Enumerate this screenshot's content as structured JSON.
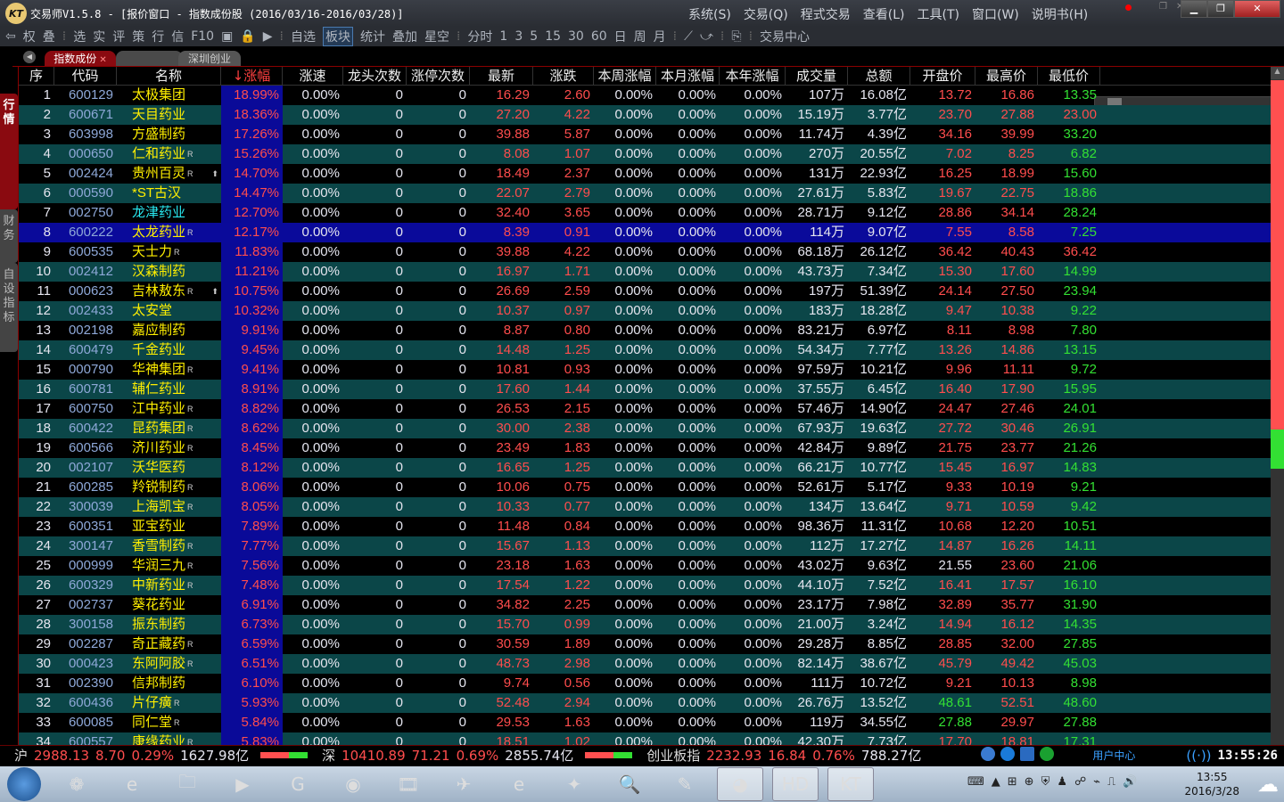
{
  "window": {
    "title": "交易师V1.5.8 - [报价窗口 - 指数成份股 (2016/03/16-2016/03/28)]",
    "logo": "KT"
  },
  "menu": [
    "系统(S)",
    "交易(Q)",
    "程式交易",
    "查看(L)",
    "工具(T)",
    "窗口(W)",
    "说明书(H)"
  ],
  "toolbar": [
    "权",
    "叠",
    "选",
    "实",
    "评",
    "策",
    "行",
    "信",
    "F10",
    "自选",
    "板块",
    "统计",
    "叠加",
    "星空",
    "分时",
    "1",
    "3",
    "5",
    "15",
    "30",
    "60",
    "日",
    "周",
    "月",
    "交易中心"
  ],
  "toolbar_active": "板块",
  "tabs": {
    "active": "指数成份",
    "second": "",
    "third": "深圳创业"
  },
  "side_tabs": [
    "行情",
    "财务",
    "自设指标"
  ],
  "columns": [
    "序",
    "代码",
    "名称",
    "↓涨幅",
    "涨速",
    "龙头次数",
    "涨停次数",
    "最新",
    "涨跌",
    "本周涨幅",
    "本月涨幅",
    "本年涨幅",
    "成交量",
    "总额",
    "开盘价",
    "最高价",
    "最低价"
  ],
  "sort_column": "↓涨幅",
  "selected_row": 8,
  "rows": [
    [
      1,
      "600129",
      "太极集团",
      "",
      0,
      "18.99%",
      "16.29",
      "2.60",
      "107万",
      "16.08亿",
      "13.72",
      "16.86",
      "13.35"
    ],
    [
      2,
      "600671",
      "天目药业",
      "",
      0,
      "18.36%",
      "27.20",
      "4.22",
      "15.19万",
      "3.77亿",
      "23.70",
      "27.88",
      "23.00"
    ],
    [
      3,
      "603998",
      "方盛制药",
      "",
      0,
      "17.26%",
      "39.88",
      "5.87",
      "11.74万",
      "4.39亿",
      "34.16",
      "39.99",
      "33.20"
    ],
    [
      4,
      "000650",
      "仁和药业",
      "R",
      0,
      "15.26%",
      "8.08",
      "1.07",
      "270万",
      "20.55亿",
      "7.02",
      "8.25",
      "6.82"
    ],
    [
      5,
      "002424",
      "贵州百灵",
      "R",
      1,
      "14.70%",
      "18.49",
      "2.37",
      "131万",
      "22.93亿",
      "16.25",
      "18.99",
      "15.60"
    ],
    [
      6,
      "000590",
      "*ST古汉",
      "",
      0,
      "14.47%",
      "22.07",
      "2.79",
      "27.61万",
      "5.83亿",
      "19.67",
      "22.75",
      "18.86"
    ],
    [
      7,
      "002750",
      "龙津药业",
      "",
      0,
      "12.70%",
      "32.40",
      "3.65",
      "28.71万",
      "9.12亿",
      "28.86",
      "34.14",
      "28.24"
    ],
    [
      8,
      "600222",
      "太龙药业",
      "R",
      0,
      "12.17%",
      "8.39",
      "0.91",
      "114万",
      "9.07亿",
      "7.55",
      "8.58",
      "7.25"
    ],
    [
      9,
      "600535",
      "天士力",
      "R",
      0,
      "11.83%",
      "39.88",
      "4.22",
      "68.18万",
      "26.12亿",
      "36.42",
      "40.43",
      "36.42"
    ],
    [
      10,
      "002412",
      "汉森制药",
      "",
      0,
      "11.21%",
      "16.97",
      "1.71",
      "43.73万",
      "7.34亿",
      "15.30",
      "17.60",
      "14.99"
    ],
    [
      11,
      "000623",
      "吉林敖东",
      "R",
      1,
      "10.75%",
      "26.69",
      "2.59",
      "197万",
      "51.39亿",
      "24.14",
      "27.50",
      "23.94"
    ],
    [
      12,
      "002433",
      "太安堂",
      "",
      0,
      "10.32%",
      "10.37",
      "0.97",
      "183万",
      "18.28亿",
      "9.47",
      "10.38",
      "9.22"
    ],
    [
      13,
      "002198",
      "嘉应制药",
      "",
      0,
      "9.91%",
      "8.87",
      "0.80",
      "83.21万",
      "6.97亿",
      "8.11",
      "8.98",
      "7.80"
    ],
    [
      14,
      "600479",
      "千金药业",
      "",
      0,
      "9.45%",
      "14.48",
      "1.25",
      "54.34万",
      "7.77亿",
      "13.26",
      "14.86",
      "13.15"
    ],
    [
      15,
      "000790",
      "华神集团",
      "R",
      0,
      "9.41%",
      "10.81",
      "0.93",
      "97.59万",
      "10.21亿",
      "9.96",
      "11.11",
      "9.72"
    ],
    [
      16,
      "600781",
      "辅仁药业",
      "",
      0,
      "8.91%",
      "17.60",
      "1.44",
      "37.55万",
      "6.45亿",
      "16.40",
      "17.90",
      "15.95"
    ],
    [
      17,
      "600750",
      "江中药业",
      "R",
      0,
      "8.82%",
      "26.53",
      "2.15",
      "57.46万",
      "14.90亿",
      "24.47",
      "27.46",
      "24.01"
    ],
    [
      18,
      "600422",
      "昆药集团",
      "R",
      0,
      "8.62%",
      "30.00",
      "2.38",
      "67.93万",
      "19.63亿",
      "27.72",
      "30.46",
      "26.91"
    ],
    [
      19,
      "600566",
      "济川药业",
      "R",
      0,
      "8.45%",
      "23.49",
      "1.83",
      "42.84万",
      "9.89亿",
      "21.75",
      "23.77",
      "21.26"
    ],
    [
      20,
      "002107",
      "沃华医药",
      "",
      0,
      "8.12%",
      "16.65",
      "1.25",
      "66.21万",
      "10.77亿",
      "15.45",
      "16.97",
      "14.83"
    ],
    [
      21,
      "600285",
      "羚锐制药",
      "R",
      0,
      "8.06%",
      "10.06",
      "0.75",
      "52.61万",
      "5.17亿",
      "9.33",
      "10.19",
      "9.21"
    ],
    [
      22,
      "300039",
      "上海凯宝",
      "R",
      0,
      "8.05%",
      "10.33",
      "0.77",
      "134万",
      "13.64亿",
      "9.71",
      "10.59",
      "9.42"
    ],
    [
      23,
      "600351",
      "亚宝药业",
      "",
      0,
      "7.89%",
      "11.48",
      "0.84",
      "98.36万",
      "11.31亿",
      "10.68",
      "12.20",
      "10.51"
    ],
    [
      24,
      "300147",
      "香雪制药",
      "R",
      0,
      "7.77%",
      "15.67",
      "1.13",
      "112万",
      "17.27亿",
      "14.87",
      "16.26",
      "14.11"
    ],
    [
      25,
      "000999",
      "华润三九",
      "R",
      0,
      "7.56%",
      "23.18",
      "1.63",
      "43.02万",
      "9.63亿",
      "21.55",
      "23.60",
      "21.06"
    ],
    [
      26,
      "600329",
      "中新药业",
      "R",
      0,
      "7.48%",
      "17.54",
      "1.22",
      "44.10万",
      "7.52亿",
      "16.41",
      "17.57",
      "16.10"
    ],
    [
      27,
      "002737",
      "葵花药业",
      "",
      0,
      "6.91%",
      "34.82",
      "2.25",
      "23.17万",
      "7.98亿",
      "32.89",
      "35.77",
      "31.90"
    ],
    [
      28,
      "300158",
      "振东制药",
      "",
      0,
      "6.73%",
      "15.70",
      "0.99",
      "21.00万",
      "3.24亿",
      "14.94",
      "16.12",
      "14.35"
    ],
    [
      29,
      "002287",
      "奇正藏药",
      "R",
      0,
      "6.59%",
      "30.59",
      "1.89",
      "29.28万",
      "8.85亿",
      "28.85",
      "32.00",
      "27.85"
    ],
    [
      30,
      "000423",
      "东阿阿胶",
      "R",
      0,
      "6.51%",
      "48.73",
      "2.98",
      "82.14万",
      "38.67亿",
      "45.79",
      "49.42",
      "45.03"
    ],
    [
      31,
      "002390",
      "信邦制药",
      "",
      0,
      "6.10%",
      "9.74",
      "0.56",
      "111万",
      "10.72亿",
      "9.21",
      "10.13",
      "8.98"
    ],
    [
      32,
      "600436",
      "片仔癀",
      "R",
      0,
      "5.93%",
      "52.48",
      "2.94",
      "26.76万",
      "13.52亿",
      "48.61",
      "52.51",
      "48.60"
    ],
    [
      33,
      "600085",
      "同仁堂",
      "R",
      0,
      "5.84%",
      "29.53",
      "1.63",
      "119万",
      "34.55亿",
      "27.88",
      "29.97",
      "27.88"
    ],
    [
      34,
      "600557",
      "康缘药业",
      "R",
      0,
      "5.83%",
      "18.51",
      "1.02",
      "42.30万",
      "7.73亿",
      "17.70",
      "18.81",
      "17.31"
    ]
  ],
  "constant_cells": {
    "speed": "0.00%",
    "leader": "0",
    "limit": "0",
    "week": "0.00%",
    "month": "0.00%",
    "year": "0.00%"
  },
  "cyan_names": [
    "龙津药业"
  ],
  "status": {
    "sh": {
      "label": "沪",
      "index": "2988.13",
      "change": "8.70",
      "pct": "0.29%",
      "amount": "1627.98亿"
    },
    "sz": {
      "label": "深",
      "index": "10410.89",
      "change": "71.21",
      "pct": "0.69%",
      "amount": "2855.74亿"
    },
    "cy": {
      "label": "创业板指",
      "index": "2232.93",
      "change": "16.84",
      "pct": "0.76%",
      "amount": "788.27亿"
    },
    "user_center": "用户中心",
    "time": "13:55:26"
  },
  "up_down_ratio": {
    "up": 0.9,
    "down": 0.1
  },
  "taskbar": {
    "apps": [
      "windows-start",
      "360-icon",
      "ie-icon",
      "explorer-icon",
      "media-player-icon",
      "g-app-icon",
      "picture-viewer-icon",
      "video-icon",
      "bird-app-icon",
      "green-ie-icon",
      "foxmail-icon",
      "search-app-icon",
      "notepad-icon",
      "firefox-icon",
      "hd-player-icon",
      "kt-app-icon"
    ],
    "time": "13:55",
    "date": "2016/3/28"
  },
  "colors": {
    "up": "#ff4d4d",
    "down": "#33e033",
    "flat": "#e6e6f0",
    "name": "#ffef00",
    "code": "#8ea8d8",
    "alt_row": "#0b4648",
    "selected_row": "#0a0a9a",
    "accent": "#8a0a10"
  }
}
